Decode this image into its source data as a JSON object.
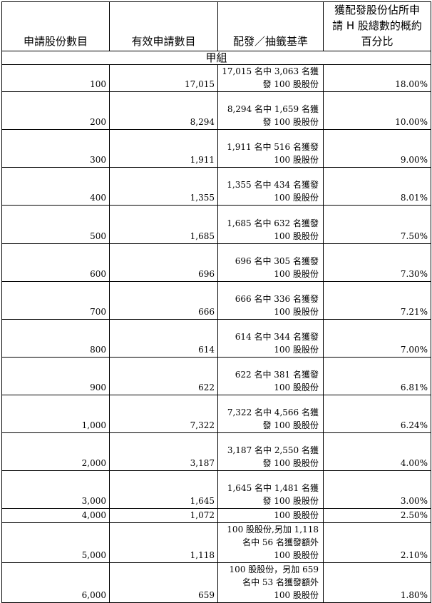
{
  "headers": [
    "申請股份數目",
    "有效申請數目",
    "配發／抽籤基準",
    [
      "獲配發股份佔所申",
      "請 H 股總數的概約",
      "百分比"
    ]
  ],
  "group_label": "甲組",
  "rows": [
    {
      "shares": "100",
      "valid": "17,015",
      "basis": [
        "17,015 名中 3,063 名獲",
        "發 100 股股份"
      ],
      "pct": "18.00%"
    },
    {
      "shares": "200",
      "valid": "8,294",
      "basis": [
        "8,294 名中 1,659 名獲",
        "發 100 股股份"
      ],
      "pct": "10.00%"
    },
    {
      "shares": "300",
      "valid": "1,911",
      "basis": [
        "1,911 名中 516 名獲發",
        "100 股股份"
      ],
      "pct": "9.00%"
    },
    {
      "shares": "400",
      "valid": "1,355",
      "basis": [
        "1,355 名中 434 名獲發",
        "100 股股份"
      ],
      "pct": "8.01%"
    },
    {
      "shares": "500",
      "valid": "1,685",
      "basis": [
        "1,685 名中 632 名獲發",
        "100 股股份"
      ],
      "pct": "7.50%"
    },
    {
      "shares": "600",
      "valid": "696",
      "basis": [
        "696 名中 305 名獲發",
        "100 股股份"
      ],
      "pct": "7.30%"
    },
    {
      "shares": "700",
      "valid": "666",
      "basis": [
        "666 名中 336 名獲發",
        "100 股股份"
      ],
      "pct": "7.21%"
    },
    {
      "shares": "800",
      "valid": "614",
      "basis": [
        "614 名中 344 名獲發",
        "100 股股份"
      ],
      "pct": "7.00%"
    },
    {
      "shares": "900",
      "valid": "622",
      "basis": [
        "622 名中 381 名獲發",
        "100 股股份"
      ],
      "pct": "6.81%"
    },
    {
      "shares": "1,000",
      "valid": "7,322",
      "basis": [
        "7,322 名中 4,566 名獲",
        "發 100 股股份"
      ],
      "pct": "6.24%"
    },
    {
      "shares": "2,000",
      "valid": "3,187",
      "basis": [
        "3,187 名中 2,550 名獲",
        "發 100 股股份"
      ],
      "pct": "4.00%"
    },
    {
      "shares": "3,000",
      "valid": "1,645",
      "basis": [
        "1,645 名中 1,481 名獲",
        "發 100 股股份"
      ],
      "pct": "3.00%"
    },
    {
      "shares": "4,000",
      "valid": "1,072",
      "basis": [
        "100 股股份"
      ],
      "pct": "2.50%"
    },
    {
      "shares": "5,000",
      "valid": "1,118",
      "basis": [
        "100 股股份,另加 1,118",
        "名中 56 名獲發額外",
        "100 股股份"
      ],
      "pct": "2.10%"
    },
    {
      "shares": "6,000",
      "valid": "659",
      "basis": [
        "100 股股份，另加 659",
        "名中 53 名獲發額外",
        "100 股股份"
      ],
      "pct": "1.80%"
    }
  ]
}
